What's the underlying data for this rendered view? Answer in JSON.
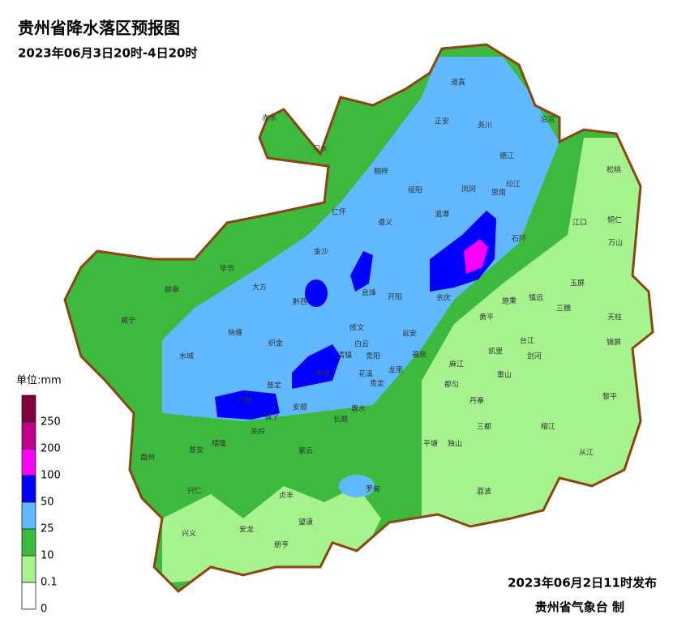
{
  "header": {
    "title": "贵州省降水落区预报图",
    "subtitle": "2023年06月3日20时-4日20时"
  },
  "legend": {
    "unit": "单位:mm",
    "levels": [
      0,
      0.1,
      10,
      25,
      50,
      100,
      200,
      250
    ],
    "colors": [
      "#ffffff",
      "#a6f28f",
      "#3dba3d",
      "#61b8ff",
      "#0000fe",
      "#fa00fa",
      "#c0008a",
      "#800040"
    ]
  },
  "places": [
    "道真",
    "正安",
    "务川",
    "沿河",
    "赤水",
    "习水",
    "桐梓",
    "绥阳",
    "凤冈",
    "德江",
    "印江",
    "松桃",
    "仁怀",
    "遵义",
    "湄潭",
    "思南",
    "江口",
    "铜仁",
    "金沙",
    "石阡",
    "万山",
    "毕节",
    "大方",
    "黔西",
    "息烽",
    "开阳",
    "余庆",
    "玉屏",
    "赫章",
    "威宁",
    "纳雍",
    "织金",
    "修文",
    "瓮安",
    "施秉",
    "镇远",
    "三穗",
    "天柱",
    "水城",
    "清镇",
    "白云",
    "贵阳",
    "福泉",
    "黄平",
    "台江",
    "剑河",
    "锦屏",
    "普定",
    "平坝",
    "花溪",
    "龙里",
    "麻江",
    "凯里",
    "雷山",
    "六枝",
    "安顺",
    "镇宁",
    "贵定",
    "都匀",
    "丹寨",
    "黎平",
    "盘州",
    "关岭",
    "长顺",
    "惠水",
    "三都",
    "榕江",
    "晴隆",
    "普安",
    "紫云",
    "平塘",
    "独山",
    "从江",
    "兴仁",
    "贞丰",
    "罗甸",
    "荔波",
    "兴义",
    "安龙",
    "望谟",
    "册亨"
  ],
  "footer": {
    "issued": "2023年06月2日11时发布",
    "agency": "贵州省气象台 制"
  }
}
